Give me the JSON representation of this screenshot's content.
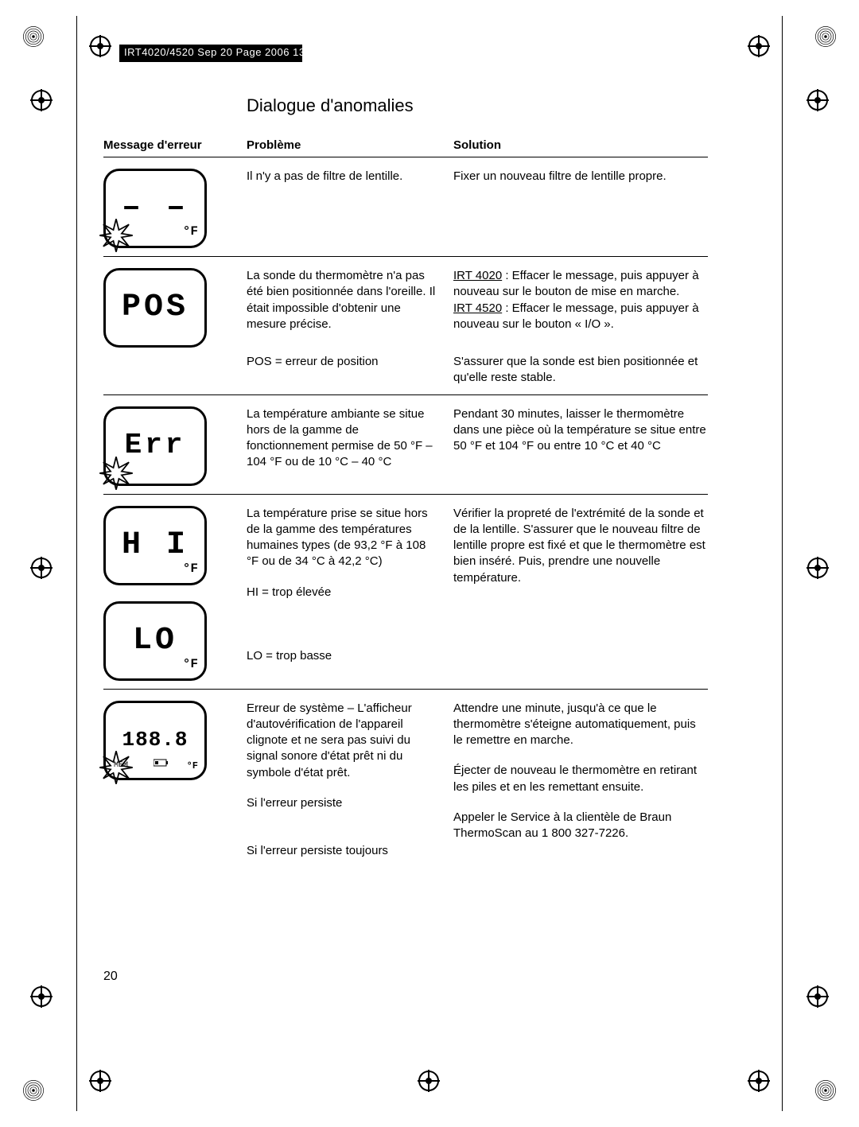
{
  "header": "IRT4020/4520  Sep 20  Page 2006  13",
  "page_number": "20",
  "title": "Dialogue d'anomalies",
  "columns": {
    "c1": "Message d'erreur",
    "c2": "Problème",
    "c3": "Solution"
  },
  "rows": [
    {
      "display": "– –",
      "unit": "°F",
      "burst_pos": "bl",
      "problem": "Il n'y a pas de filtre de lentille.",
      "solution": "Fixer un nouveau filtre de lentille propre."
    },
    {
      "display": "POS",
      "problem": "La sonde du thermomètre n'a pas été bien positionnée dans l'oreille. Il était impossible d'obtenir une mesure précise.",
      "solution_html": "<span class=\"underline\">IRT 4020</span> : Effacer le message, puis appuyer à nouveau sur le bouton de mise en marche.<br><span class=\"underline\">IRT 4520</span> : Effacer le message, puis appuyer à nouveau sur le bouton « I/O »."
    },
    {
      "display": "",
      "problem2": "POS = erreur de position",
      "solution2": "S'assurer que la sonde est bien positionnée et qu'elle reste stable."
    },
    {
      "display": "Err",
      "burst_pos": "bl",
      "problem": "La température ambiante se situe hors de la gamme de fonctionnement permise de 50 °F – 104 °F ou de 10 °C – 40 °C",
      "solution": "Pendant 30 minutes, laisser le thermomètre dans une pièce où la température se situe entre 50 °F et 104 °F ou entre 10 °C et 40 °C"
    },
    {
      "display_hi": "H I",
      "display_lo": "LO",
      "unit": "°F",
      "problem": "La température prise se situe hors de la gamme des températures humaines types (de 93,2 °F à 108 °F ou de 34 °C à 42,2 °C)",
      "problem2": "HI = trop élevée",
      "problem3": "LO = trop basse",
      "solution": "Vérifier la propreté de l'extrémité de la sonde et de la lentille. S'assurer que le nouveau filtre de lentille propre est fixé et que le thermomètre est bien inséré. Puis, prendre une nouvelle température."
    },
    {
      "display": "188.8",
      "mem": "MEM",
      "unit": "°F",
      "burst_pos": "bl",
      "problem": "Erreur de système – L'afficheur d'autovérification de l'appareil clignote et ne sera pas suivi du signal sonore d'état prêt ni du symbole d'état prêt.",
      "solution": "Attendre une minute, jusqu'à ce que le thermomètre s'éteigne automatiquement, puis le remettre en marche.",
      "problem2": "Si l'erreur persiste",
      "solution2": "Éjecter de nouveau le thermomètre en retirant les piles et en les remettant ensuite.",
      "problem3": "Si l'erreur persiste toujours",
      "solution3": "Appeler le Service à la clientèle de Braun ThermoScan au 1 800 327-7226."
    }
  ]
}
